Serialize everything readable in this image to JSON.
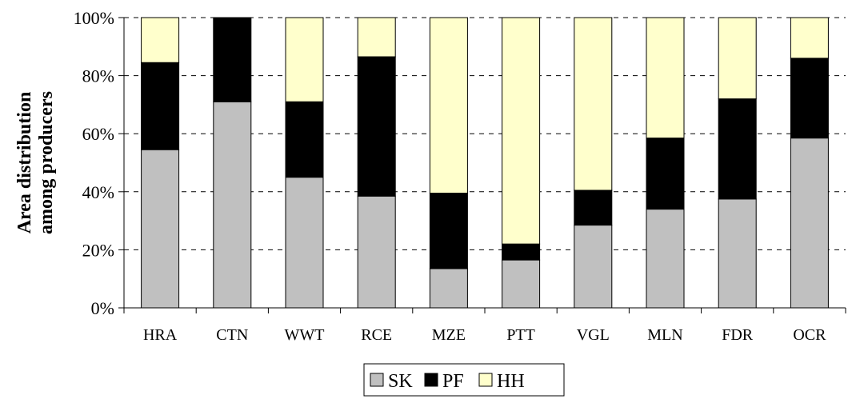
{
  "chart_data": {
    "type": "bar",
    "stacked": true,
    "categories": [
      "HRA",
      "CTN",
      "WWT",
      "RCE",
      "MZE",
      "PTT",
      "VGL",
      "MLN",
      "FDR",
      "OCR"
    ],
    "series": [
      {
        "name": "SK",
        "color": "#c0c0c0",
        "values": [
          54.5,
          71,
          45,
          38.5,
          13.5,
          16.5,
          28.5,
          34,
          37.5,
          58.5
        ]
      },
      {
        "name": "PF",
        "color": "#000000",
        "values": [
          30,
          29,
          26,
          48,
          26,
          5.5,
          12,
          24.5,
          34.5,
          27.5
        ]
      },
      {
        "name": "HH",
        "color": "#ffffcc",
        "values": [
          15.5,
          0,
          29,
          13.5,
          60.5,
          78,
          59.5,
          41.5,
          28,
          14
        ]
      }
    ],
    "ylabel_lines": [
      "Area distribution",
      "among producers"
    ],
    "yticks": [
      "0%",
      "20%",
      "40%",
      "60%",
      "80%",
      "100%"
    ],
    "ylim": [
      0,
      100
    ],
    "grid": true,
    "legend_position": "bottom"
  }
}
